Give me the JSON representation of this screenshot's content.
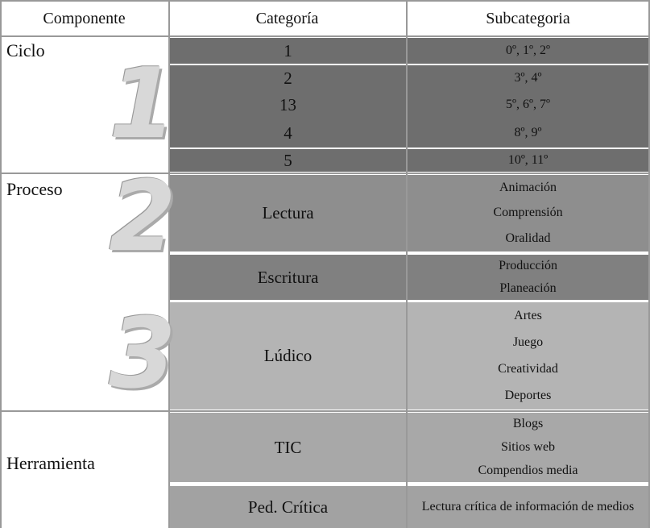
{
  "header": [
    "Componente",
    "Categoría",
    "Subcategoria"
  ],
  "sections": [
    {
      "component": "Ciclo",
      "icon": "1",
      "rows": [
        {
          "category": "1",
          "subcategories": [
            "0º, 1º, 2º"
          ]
        },
        {
          "category": "2",
          "subcategories": [
            "3º, 4º"
          ]
        },
        {
          "category": "13",
          "subcategories": [
            "5º, 6º, 7º"
          ]
        },
        {
          "category": "4",
          "subcategories": [
            "8º, 9º"
          ]
        },
        {
          "category": "5",
          "subcategories": [
            "10º, 11º"
          ]
        }
      ]
    },
    {
      "component": "Proceso",
      "icons": [
        "2",
        "3"
      ],
      "rows": [
        {
          "category": "Lectura",
          "subcategories": [
            "Animación",
            "Comprensión",
            "Oralidad"
          ]
        },
        {
          "category": "Escritura",
          "subcategories": [
            "Producción",
            "Planeación"
          ]
        },
        {
          "category": "Lúdico",
          "subcategories": [
            "Artes",
            "Juego",
            "Creatividad",
            "Deportes"
          ]
        }
      ]
    },
    {
      "component": "Herramienta",
      "rows": [
        {
          "category": "TIC",
          "subcategories": [
            "Blogs",
            "Sitios web",
            "Compendios media"
          ]
        },
        {
          "category": "Ped. Crítica",
          "subcategories": [
            "Lectura crítica de información de medios"
          ]
        }
      ]
    }
  ]
}
